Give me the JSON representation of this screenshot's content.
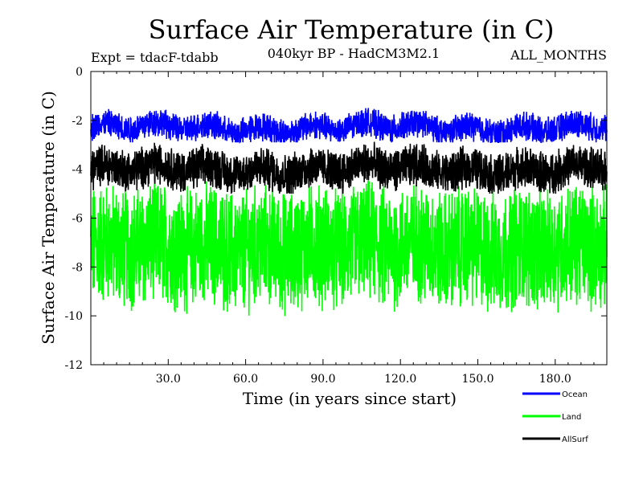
{
  "chart_data": {
    "type": "line",
    "title": "Surface Air Temperature (in C)",
    "subtitle": "040kyr BP - HadCM3M2.1",
    "experiment": "Expt = tdacF-tdabb",
    "period": "ALL_MONTHS",
    "xlabel": "Time (in years since start)",
    "ylabel": "Surface Air Temperature (in C)",
    "xlim": [
      0,
      200
    ],
    "ylim": [
      -12,
      0
    ],
    "xticks": [
      "30.0",
      "60.0",
      "90.0",
      "120.0",
      "150.0",
      "180.0"
    ],
    "xtick_values": [
      30,
      60,
      90,
      120,
      150,
      180
    ],
    "yticks": [
      "0",
      "-2",
      "-4",
      "-6",
      "-8",
      "-10",
      "-12"
    ],
    "ytick_values": [
      0,
      -2,
      -4,
      -6,
      -8,
      -10,
      -12
    ],
    "series": [
      {
        "name": "Ocean",
        "color": "#0000ff",
        "mean": -2.3,
        "min": -2.9,
        "max": -1.3
      },
      {
        "name": "Land",
        "color": "#00ff00",
        "mean": -7.2,
        "min": -10.5,
        "max": -3.6
      },
      {
        "name": "AllSurf",
        "color": "#000000",
        "mean": -4.0,
        "min": -5.0,
        "max": -2.6
      }
    ],
    "legend_position": "bottom-right"
  }
}
